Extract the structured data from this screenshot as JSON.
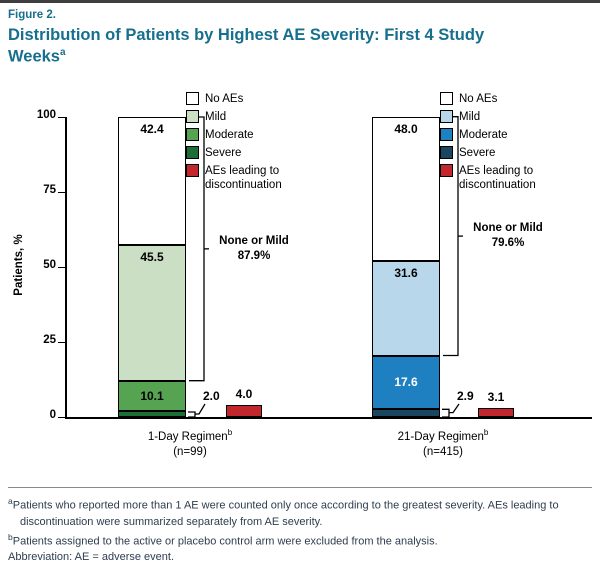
{
  "header": {
    "figure_label": "Figure 2.",
    "title_line1": "Distribution of Patients by Highest AE Severity: First 4 Study",
    "title_line2": "Weeks",
    "title_sup": "a",
    "accent_color": "#166F8D"
  },
  "chart_data": {
    "type": "bar",
    "subtype": "stacked-vertical",
    "title": "Distribution of Patients by Highest AE Severity: First 4 Study Weeks",
    "ylabel": "Patients, %",
    "ylim": [
      0,
      100
    ],
    "yticks": [
      0,
      25,
      50,
      75,
      100
    ],
    "grid": false,
    "legend_position": "top, one legend per group",
    "groups": [
      {
        "label": "1-Day Regimen",
        "label_sup": "b",
        "n_label": "(n=99)",
        "stack": [
          {
            "label": "Severe",
            "value": 2.0
          },
          {
            "label": "Moderate",
            "value": 10.1
          },
          {
            "label": "Mild",
            "value": 45.5
          },
          {
            "label": "No AEs",
            "value": 42.4
          }
        ],
        "discontinuation": {
          "label": "AEs leading to discontinuation",
          "value": 4.0
        },
        "bracket": {
          "label": "None or Mild",
          "value": 87.9,
          "covers": [
            "No AEs",
            "Mild"
          ]
        },
        "legend": [
          "No AEs",
          "Mild",
          "Moderate",
          "Severe",
          "AEs leading to discontinuation"
        ],
        "colors": {
          "No AEs": "#FFFFFF",
          "Mild": "#CBDFC4",
          "Moderate": "#56A451",
          "Severe": "#1C6E35",
          "AEs leading to discontinuation": "#C1272D"
        }
      },
      {
        "label": "21-Day Regimen",
        "label_sup": "b",
        "n_label": "(n=415)",
        "stack": [
          {
            "label": "Severe",
            "value": 2.9
          },
          {
            "label": "Moderate",
            "value": 17.6
          },
          {
            "label": "Mild",
            "value": 31.6
          },
          {
            "label": "No AEs",
            "value": 48.0
          }
        ],
        "discontinuation": {
          "label": "AEs leading to discontinuation",
          "value": 3.1
        },
        "bracket": {
          "label": "None or Mild",
          "value": 79.6,
          "covers": [
            "No AEs",
            "Mild"
          ]
        },
        "legend": [
          "No AEs",
          "Mild",
          "Moderate",
          "Severe",
          "AEs leading to discontinuation"
        ],
        "colors": {
          "No AEs": "#FFFFFF",
          "Mild": "#B9D7EB",
          "Moderate": "#1E80C0",
          "Severe": "#1A465F",
          "AEs leading to discontinuation": "#C1272D"
        }
      }
    ]
  },
  "footnotes": [
    {
      "sup": "a",
      "text": "Patients who reported more than 1 AE were counted only once according to the greatest severity. AEs leading to discontinuation were summarized separately from AE severity."
    },
    {
      "sup": "b",
      "text": "Patients assigned to the active or placebo control arm were excluded from the analysis."
    },
    {
      "sup": "",
      "text": "Abbreviation: AE = adverse event."
    }
  ]
}
